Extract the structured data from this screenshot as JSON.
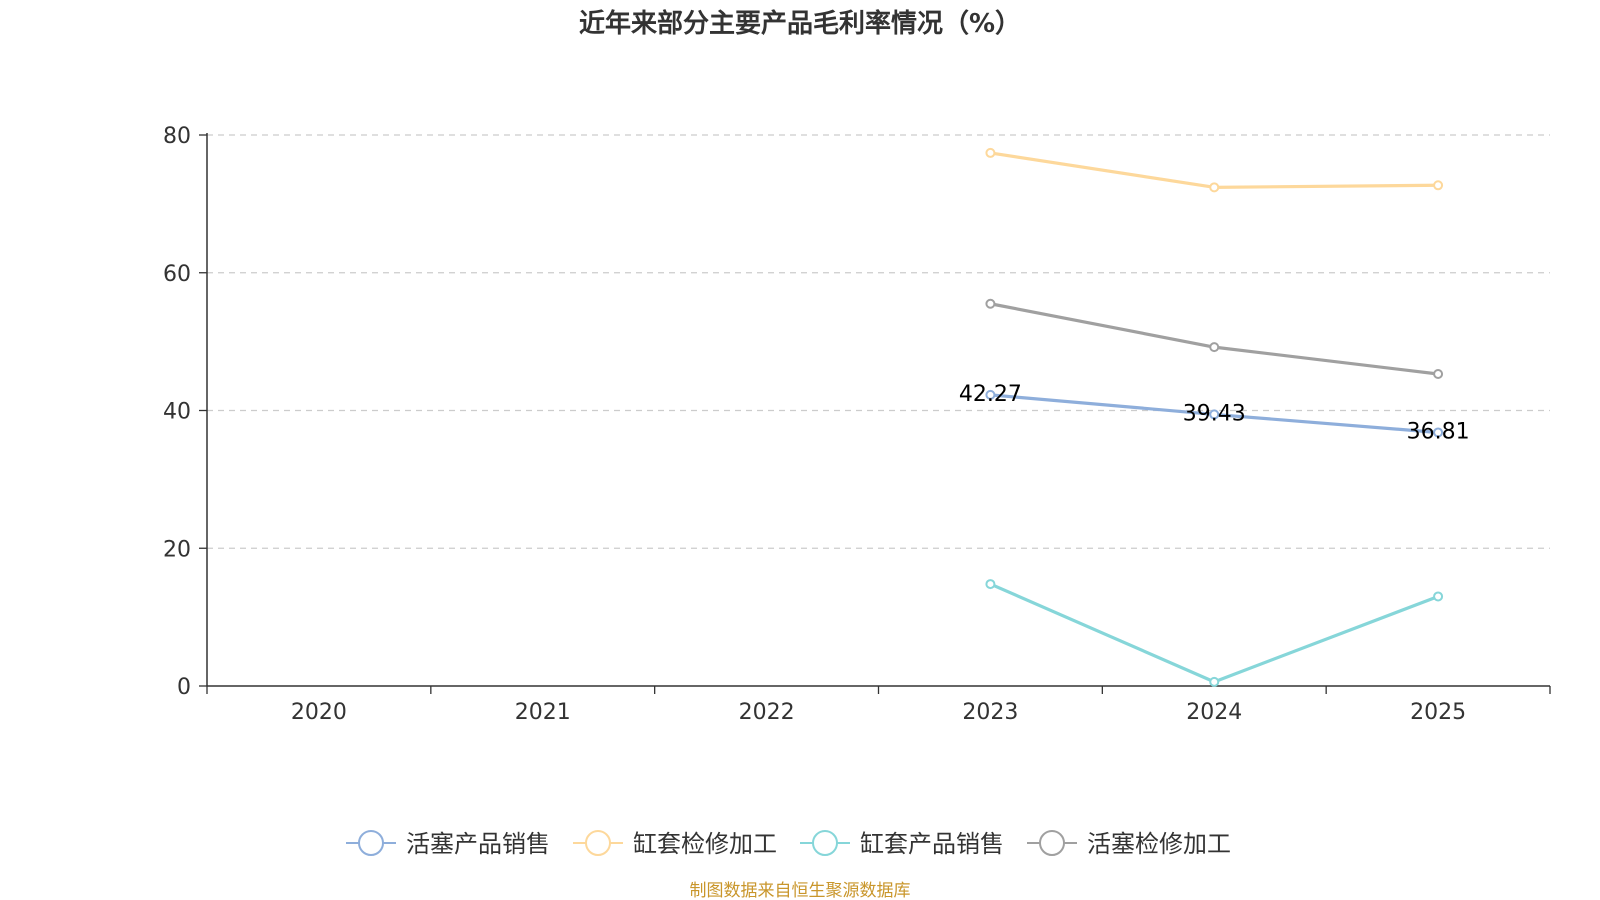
{
  "colors": {
    "axis": "#333333",
    "grid": "#cccccc",
    "source": "#c9962b"
  },
  "chart_data": {
    "type": "line",
    "title": "近年来部分主要产品毛利率情况（%）",
    "xlabel": "",
    "ylabel": "",
    "categories": [
      "2020",
      "2021",
      "2022",
      "2023",
      "2024",
      "2025"
    ],
    "ylim": [
      0,
      80
    ],
    "yticks": [
      "0",
      "20",
      "40",
      "60",
      "80"
    ],
    "grid": true,
    "legend_position": "bottom",
    "series": [
      {
        "name": "活塞产品销售",
        "color": "#8eaedb",
        "values": [
          null,
          null,
          null,
          42.27,
          39.43,
          36.81
        ],
        "labels": [
          null,
          null,
          null,
          "42.27",
          "39.43",
          "36.81"
        ]
      },
      {
        "name": "缸套检修加工",
        "color": "#fdd89b",
        "values": [
          null,
          null,
          null,
          77.4,
          72.4,
          72.7
        ],
        "labels": [
          null,
          null,
          null,
          null,
          null,
          null
        ]
      },
      {
        "name": "缸套产品销售",
        "color": "#86d6d9",
        "values": [
          null,
          null,
          null,
          14.8,
          0.6,
          13.0
        ],
        "labels": [
          null,
          null,
          null,
          null,
          null,
          null
        ]
      },
      {
        "name": "活塞检修加工",
        "color": "#a0a0a0",
        "values": [
          null,
          null,
          null,
          55.5,
          49.2,
          45.3
        ],
        "labels": [
          null,
          null,
          null,
          null,
          null,
          null
        ]
      }
    ],
    "source": "制图数据来自恒生聚源数据库"
  }
}
